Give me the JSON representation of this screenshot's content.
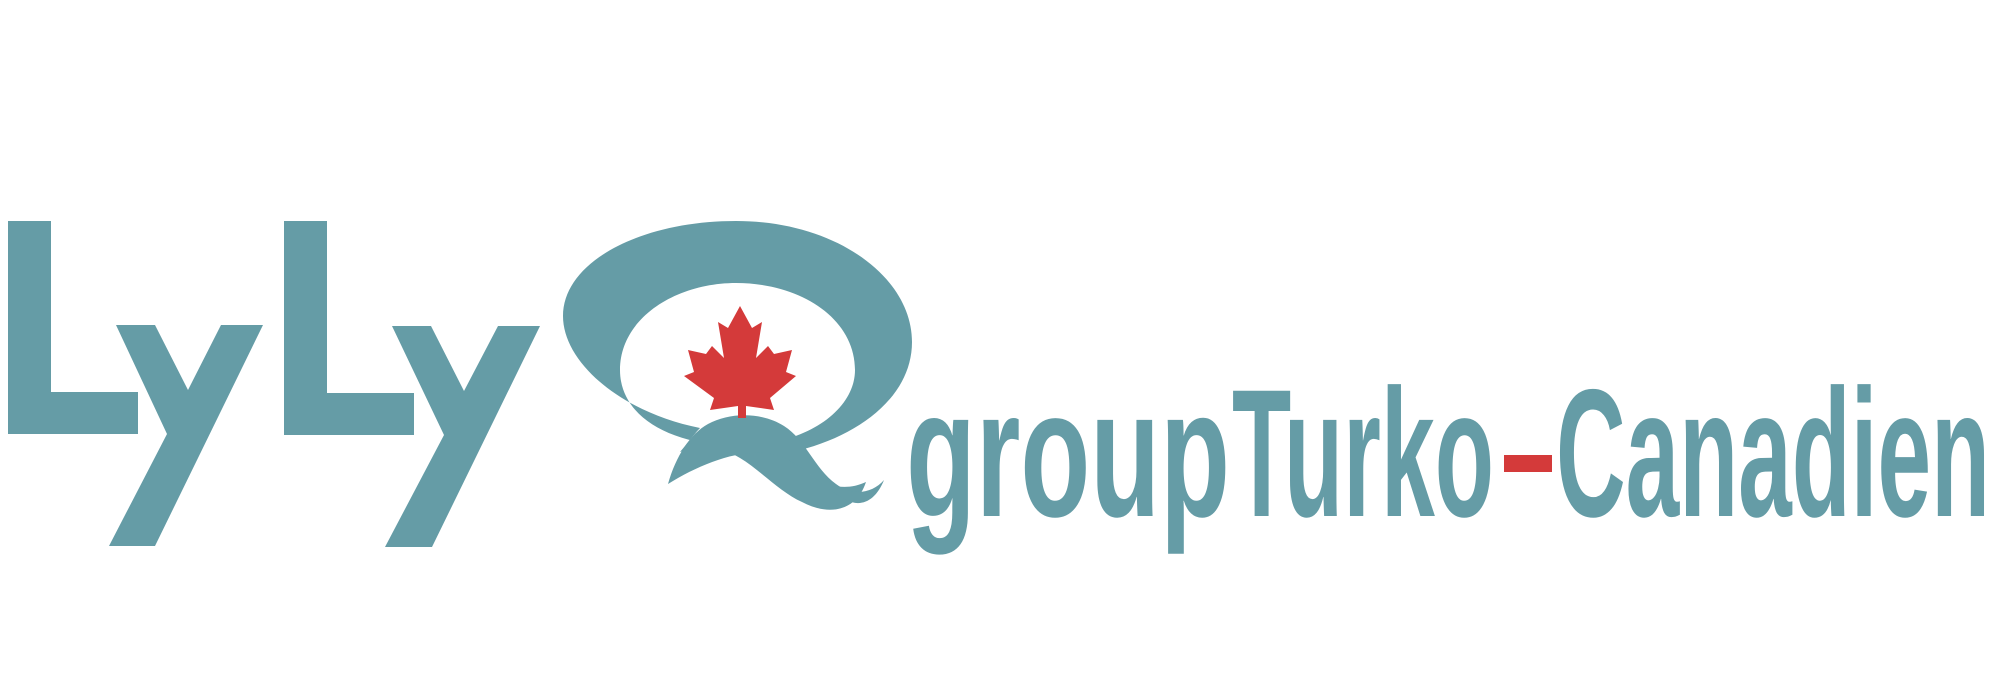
{
  "logo": {
    "brand_letters": "LyLy",
    "word_group": "group",
    "word_turko": "Turko",
    "word_canadien": "Canadien",
    "emblem_icon": "maple-leaf-speech-bubble-icon"
  },
  "colors": {
    "brand_teal": "#659ca6",
    "maple_red": "#d43a3a",
    "background": "#ffffff"
  }
}
